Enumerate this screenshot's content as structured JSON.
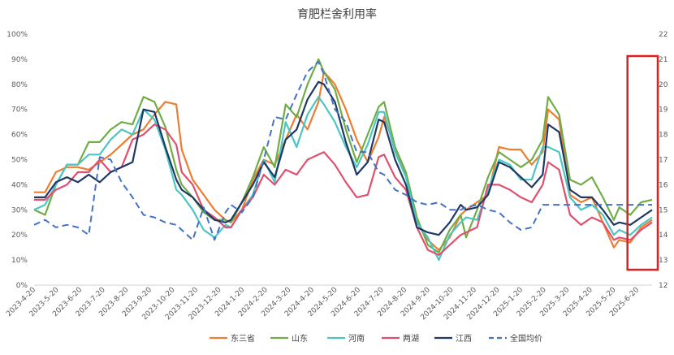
{
  "chart_data": {
    "type": "line",
    "title": "育肥栏舍利用率",
    "x_labels": [
      "2023-4-20",
      "2023-5-20",
      "2023-6-20",
      "2023-7-20",
      "2023-8-20",
      "2023-9-20",
      "2023-10-20",
      "2023-11-20",
      "2023-12-20",
      "2024-1-20",
      "2024-2-20",
      "2024-3-20",
      "2024-4-20",
      "2024-5-20",
      "2024-6-20",
      "2024-7-20",
      "2024-8-20",
      "2024-9-20",
      "2024-10-20",
      "2024-11-20",
      "2024-12-20",
      "2025-1-20",
      "2025-2-20",
      "2025-3-20",
      "2025-4-20",
      "2025-5-20",
      "2025-6-20"
    ],
    "x_range": [
      0,
      113
    ],
    "y_left": {
      "min": 0,
      "max": 100,
      "step": 10,
      "tick_labels": [
        "0%",
        "10%",
        "20%",
        "30%",
        "40%",
        "50%",
        "60%",
        "70%",
        "80%",
        "90%",
        "100%"
      ]
    },
    "y_right": {
      "min": 12,
      "max": 22,
      "step": 1,
      "tick_labels": [
        "12",
        "13",
        "14",
        "15",
        "16",
        "17",
        "18",
        "19",
        "20",
        "21",
        "22"
      ]
    },
    "legend_position": "bottom",
    "grid": false,
    "series": [
      {
        "name": "东三省",
        "color": "#ED7D31",
        "axis": "left",
        "dash": false,
        "x": [
          0,
          2,
          4,
          6,
          8,
          10,
          12,
          14,
          16,
          18,
          20,
          22,
          24,
          26,
          27,
          29,
          31,
          33,
          35,
          36,
          38,
          40,
          42,
          44,
          46,
          48,
          50,
          52,
          53,
          55,
          57,
          59,
          61,
          63,
          64,
          66,
          68,
          70,
          72,
          74,
          76,
          78,
          79,
          81,
          83,
          85,
          87,
          89,
          91,
          93,
          94,
          96,
          98,
          100,
          102,
          104,
          106,
          107,
          109,
          111,
          113
        ],
        "values": [
          37,
          37,
          45,
          47,
          47,
          46,
          49,
          52,
          56,
          60,
          62,
          68,
          73,
          72,
          54,
          42,
          36,
          30,
          26,
          25,
          30,
          42,
          50,
          48,
          58,
          68,
          62,
          73,
          85,
          80,
          70,
          58,
          49,
          59,
          67,
          55,
          44,
          25,
          18,
          14,
          19,
          28,
          30,
          33,
          36,
          55,
          54,
          54,
          48,
          53,
          70,
          66,
          36,
          33,
          35,
          25,
          15,
          18,
          17,
          23,
          26
        ]
      },
      {
        "name": "山东",
        "color": "#70AD47",
        "axis": "left",
        "dash": false,
        "x": [
          0,
          2,
          4,
          6,
          8,
          10,
          12,
          14,
          16,
          18,
          20,
          22,
          24,
          26,
          27,
          29,
          31,
          33,
          35,
          36,
          38,
          40,
          42,
          44,
          46,
          48,
          50,
          52,
          53,
          55,
          57,
          59,
          61,
          63,
          64,
          66,
          68,
          70,
          72,
          74,
          76,
          78,
          79,
          81,
          83,
          85,
          87,
          89,
          91,
          93,
          94,
          96,
          98,
          100,
          102,
          104,
          106,
          107,
          109,
          111,
          113
        ],
        "values": [
          30,
          28,
          40,
          48,
          48,
          57,
          57,
          62,
          65,
          64,
          75,
          73,
          63,
          46,
          40,
          35,
          29,
          26,
          26,
          25,
          33,
          43,
          55,
          47,
          72,
          67,
          80,
          90,
          85,
          78,
          62,
          49,
          60,
          71,
          73,
          55,
          45,
          27,
          16,
          13,
          22,
          28,
          19,
          30,
          43,
          53,
          50,
          47,
          50,
          58,
          75,
          68,
          42,
          40,
          43,
          35,
          26,
          31,
          28,
          33,
          34
        ]
      },
      {
        "name": "河南",
        "color": "#4BC6C3",
        "axis": "left",
        "dash": false,
        "x": [
          0,
          2,
          4,
          6,
          8,
          10,
          12,
          14,
          16,
          18,
          20,
          22,
          24,
          26,
          27,
          29,
          31,
          33,
          35,
          36,
          38,
          40,
          42,
          44,
          46,
          48,
          50,
          52,
          53,
          55,
          57,
          59,
          61,
          63,
          64,
          66,
          68,
          70,
          72,
          74,
          76,
          78,
          79,
          81,
          83,
          85,
          87,
          89,
          91,
          93,
          94,
          96,
          98,
          100,
          102,
          104,
          106,
          107,
          109,
          111,
          113
        ],
        "values": [
          30,
          32,
          40,
          48,
          48,
          52,
          52,
          58,
          62,
          60,
          70,
          66,
          54,
          38,
          36,
          30,
          22,
          19,
          24,
          23,
          30,
          36,
          50,
          41,
          65,
          55,
          68,
          75,
          72,
          65,
          55,
          47,
          56,
          69,
          69,
          53,
          43,
          25,
          19,
          10,
          20,
          25,
          27,
          26,
          38,
          50,
          48,
          42,
          42,
          55,
          55,
          53,
          35,
          30,
          32,
          28,
          20,
          22,
          20,
          24,
          27
        ]
      },
      {
        "name": "两湖",
        "color": "#E0506E",
        "axis": "left",
        "dash": false,
        "x": [
          0,
          2,
          4,
          6,
          8,
          10,
          12,
          14,
          16,
          18,
          20,
          22,
          24,
          26,
          27,
          29,
          31,
          33,
          35,
          36,
          38,
          40,
          42,
          44,
          46,
          48,
          50,
          52,
          53,
          55,
          57,
          59,
          61,
          63,
          64,
          66,
          68,
          70,
          72,
          74,
          76,
          78,
          79,
          81,
          83,
          85,
          87,
          89,
          91,
          93,
          94,
          96,
          98,
          100,
          102,
          104,
          106,
          107,
          109,
          111,
          113
        ],
        "values": [
          34,
          34,
          38,
          40,
          45,
          45,
          50,
          45,
          47,
          58,
          60,
          64,
          62,
          56,
          45,
          40,
          30,
          27,
          23,
          23,
          30,
          35,
          44,
          40,
          46,
          44,
          50,
          52,
          53,
          48,
          41,
          35,
          36,
          51,
          52,
          43,
          38,
          23,
          14,
          12,
          16,
          20,
          21,
          23,
          40,
          40,
          38,
          35,
          33,
          40,
          49,
          46,
          28,
          24,
          27,
          25,
          18,
          19,
          18,
          22,
          25
        ]
      },
      {
        "name": "江西",
        "color": "#1F3864",
        "axis": "left",
        "dash": false,
        "x": [
          0,
          2,
          4,
          6,
          8,
          10,
          12,
          14,
          16,
          18,
          20,
          22,
          24,
          26,
          27,
          29,
          31,
          33,
          35,
          36,
          38,
          40,
          42,
          44,
          46,
          48,
          50,
          52,
          53,
          55,
          57,
          59,
          61,
          63,
          64,
          66,
          68,
          70,
          72,
          74,
          76,
          78,
          79,
          81,
          83,
          85,
          87,
          89,
          91,
          93,
          94,
          96,
          98,
          100,
          102,
          104,
          106,
          107,
          109,
          111,
          113
        ],
        "values": [
          35,
          35,
          41,
          43,
          41,
          44,
          41,
          45,
          47,
          49,
          70,
          69,
          55,
          42,
          38,
          35,
          30,
          26,
          25,
          26,
          33,
          40,
          49,
          43,
          58,
          62,
          74,
          81,
          80,
          73,
          57,
          44,
          49,
          66,
          65,
          50,
          40,
          23,
          21,
          20,
          25,
          32,
          30,
          31,
          36,
          49,
          47,
          43,
          39,
          44,
          64,
          61,
          38,
          35,
          35,
          30,
          24,
          25,
          24,
          27,
          30
        ]
      },
      {
        "name": "全国均价",
        "color": "#4472C4",
        "axis": "right",
        "dash": true,
        "x": [
          0,
          2,
          4,
          6,
          8,
          10,
          12,
          14,
          16,
          18,
          20,
          22,
          24,
          26,
          27,
          29,
          31,
          33,
          35,
          36,
          38,
          40,
          42,
          44,
          46,
          48,
          50,
          52,
          53,
          55,
          57,
          59,
          61,
          63,
          64,
          66,
          68,
          70,
          72,
          74,
          76,
          78,
          79,
          81,
          83,
          85,
          87,
          89,
          91,
          93,
          94,
          96,
          98,
          100,
          102,
          104,
          106,
          107,
          109,
          111,
          113
        ],
        "values": [
          14.4,
          14.6,
          14.3,
          14.4,
          14.3,
          14.0,
          17.1,
          17.0,
          16.1,
          15.5,
          14.8,
          14.7,
          14.5,
          14.4,
          14.2,
          13.8,
          15.1,
          13.8,
          14.9,
          15.2,
          14.9,
          15.5,
          17.0,
          18.7,
          18.6,
          19.6,
          20.5,
          20.9,
          20.4,
          19.0,
          18.5,
          17.3,
          17.3,
          16.5,
          16.4,
          15.8,
          15.6,
          15.3,
          15.2,
          15.3,
          15.0,
          15.0,
          15.1,
          15.2,
          15.0,
          14.9,
          14.5,
          14.2,
          14.3,
          15.2,
          15.2,
          15.2,
          15.2,
          15.2,
          15.2,
          15.2,
          15.2,
          15.2,
          15.2,
          15.2,
          15.2
        ]
      }
    ]
  }
}
